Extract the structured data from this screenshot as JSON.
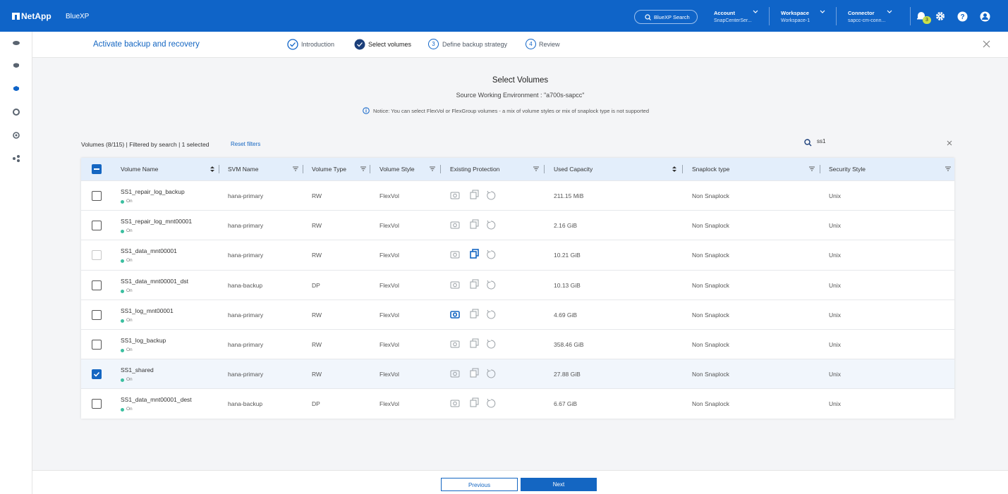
{
  "header": {
    "brand": "NetApp",
    "product": "BlueXP",
    "search": "BlueXP Search",
    "account_label": "Account",
    "account_value": "SnapCenterSer...",
    "workspace_label": "Workspace",
    "workspace_value": "Workspace-1",
    "connector_label": "Connector",
    "connector_value": "sapcc-cm-conn...",
    "notification_count": "3"
  },
  "wizard": {
    "title": "Activate backup and recovery",
    "steps": [
      {
        "label": "Introduction",
        "state": "done"
      },
      {
        "label": "Select volumes",
        "state": "current"
      },
      {
        "number": "3",
        "label": "Define backup strategy",
        "state": "pending"
      },
      {
        "number": "4",
        "label": "Review",
        "state": "pending"
      }
    ]
  },
  "content": {
    "title": "Select Volumes",
    "subtitle": "Source Working Environment : \"a700s-sapcc\"",
    "notice": "Notice: You can select FlexVol or FlexGroup volumes - a mix of volume styles or mix of snaplock type is not supported",
    "summary": "Volumes (8/115) | Filtered by search | 1 selected",
    "reset_filters": "Reset filters",
    "search_query": "ss1"
  },
  "table": {
    "columns": [
      "Volume Name",
      "SVM Name",
      "Volume Type",
      "Volume Style",
      "Existing Protection",
      "Used Capacity",
      "Snaplock type",
      "Security Style"
    ],
    "rows": [
      {
        "name": "SS1_repair_log_backup",
        "status": "On",
        "svm": "hana-primary",
        "type": "RW",
        "style": "FlexVol",
        "capacity": "211.15 MiB",
        "snaplock": "Non Snaplock",
        "security": "Unix",
        "selected": false,
        "disabled": false,
        "protection": {
          "snapshot": false,
          "replication": false,
          "backup": false
        }
      },
      {
        "name": "SS1_repair_log_mnt00001",
        "status": "On",
        "svm": "hana-primary",
        "type": "RW",
        "style": "FlexVol",
        "capacity": "2.16 GiB",
        "snaplock": "Non Snaplock",
        "security": "Unix",
        "selected": false,
        "disabled": false,
        "protection": {
          "snapshot": false,
          "replication": false,
          "backup": false
        }
      },
      {
        "name": "SS1_data_mnt00001",
        "status": "On",
        "svm": "hana-primary",
        "type": "RW",
        "style": "FlexVol",
        "capacity": "10.21 GiB",
        "snaplock": "Non Snaplock",
        "security": "Unix",
        "selected": false,
        "disabled": true,
        "protection": {
          "snapshot": false,
          "replication": true,
          "backup": false
        }
      },
      {
        "name": "SS1_data_mnt00001_dst",
        "status": "On",
        "svm": "hana-backup",
        "type": "DP",
        "style": "FlexVol",
        "capacity": "10.13 GiB",
        "snaplock": "Non Snaplock",
        "security": "Unix",
        "selected": false,
        "disabled": false,
        "protection": {
          "snapshot": false,
          "replication": false,
          "backup": false
        }
      },
      {
        "name": "SS1_log_mnt00001",
        "status": "On",
        "svm": "hana-primary",
        "type": "RW",
        "style": "FlexVol",
        "capacity": "4.69 GiB",
        "snaplock": "Non Snaplock",
        "security": "Unix",
        "selected": false,
        "disabled": false,
        "protection": {
          "snapshot": true,
          "replication": false,
          "backup": false
        }
      },
      {
        "name": "SS1_log_backup",
        "status": "On",
        "svm": "hana-primary",
        "type": "RW",
        "style": "FlexVol",
        "capacity": "358.46 GiB",
        "snaplock": "Non Snaplock",
        "security": "Unix",
        "selected": false,
        "disabled": false,
        "protection": {
          "snapshot": false,
          "replication": false,
          "backup": false
        }
      },
      {
        "name": "SS1_shared",
        "status": "On",
        "svm": "hana-primary",
        "type": "RW",
        "style": "FlexVol",
        "capacity": "27.88 GiB",
        "snaplock": "Non Snaplock",
        "security": "Unix",
        "selected": true,
        "disabled": false,
        "protection": {
          "snapshot": false,
          "replication": false,
          "backup": false
        }
      },
      {
        "name": "SS1_data_mnt00001_dest",
        "status": "On",
        "svm": "hana-backup",
        "type": "DP",
        "style": "FlexVol",
        "capacity": "6.67 GiB",
        "snaplock": "Non Snaplock",
        "security": "Unix",
        "selected": false,
        "disabled": false,
        "protection": {
          "snapshot": false,
          "replication": false,
          "backup": false
        }
      }
    ]
  },
  "footer": {
    "previous": "Previous",
    "next": "Next"
  }
}
